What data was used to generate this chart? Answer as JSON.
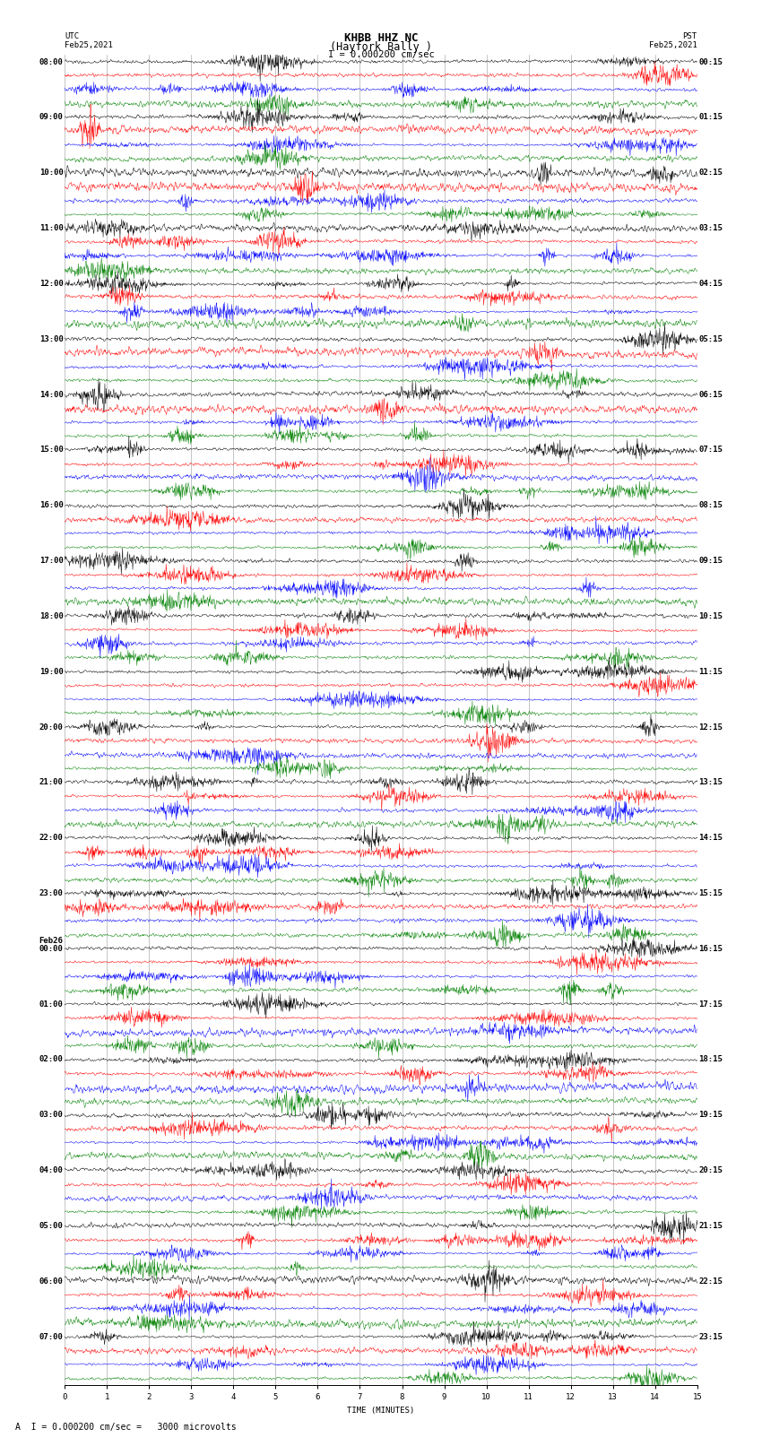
{
  "title_line1": "KHBB HHZ NC",
  "title_line2": "(Hayfork Bally )",
  "scale_text": "I = 0.000200 cm/sec",
  "footer_text": "A  I = 0.000200 cm/sec =   3000 microvolts",
  "xlabel": "TIME (MINUTES)",
  "left_label_top": "UTC",
  "left_label_date": "Feb25,2021",
  "right_label_top": "PST",
  "right_label_date": "Feb25,2021",
  "background_color": "#ffffff",
  "trace_colors": [
    "#000000",
    "#ff0000",
    "#0000ff",
    "#008000"
  ],
  "n_groups": 24,
  "n_traces_per_group": 4,
  "left_times": [
    "08:00",
    "09:00",
    "10:00",
    "11:00",
    "12:00",
    "13:00",
    "14:00",
    "15:00",
    "16:00",
    "17:00",
    "18:00",
    "19:00",
    "20:00",
    "21:00",
    "22:00",
    "23:00",
    "Feb26\n00:00",
    "01:00",
    "02:00",
    "03:00",
    "04:00",
    "05:00",
    "06:00",
    "07:00"
  ],
  "right_times": [
    "00:15",
    "01:15",
    "02:15",
    "03:15",
    "04:15",
    "05:15",
    "06:15",
    "07:15",
    "08:15",
    "09:15",
    "10:15",
    "11:15",
    "12:15",
    "13:15",
    "14:15",
    "15:15",
    "16:15",
    "17:15",
    "18:15",
    "19:15",
    "20:15",
    "21:15",
    "22:15",
    "23:15"
  ],
  "xlim": [
    0,
    15
  ],
  "grid_color": "#999999",
  "trace_amplitude": 0.42,
  "linewidth": 0.35,
  "tick_fontsize": 6.5,
  "label_fontsize": 6.5,
  "title_fontsize": 9,
  "scale_fontsize": 7.5,
  "footer_fontsize": 7
}
